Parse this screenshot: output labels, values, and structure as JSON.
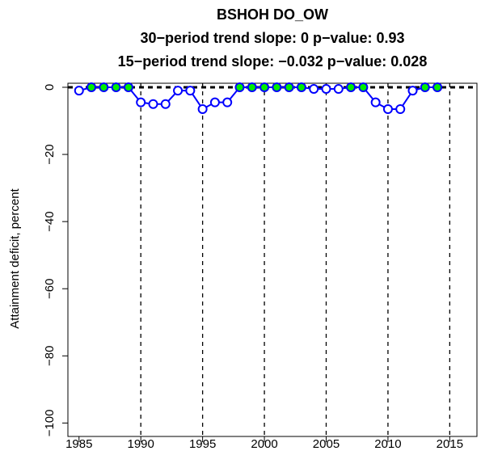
{
  "chart_data": {
    "type": "line",
    "title": "BSHOH   DO_OW",
    "subtitle": "30−period trend slope: 0   p−value: 0.93",
    "subtitle2": "15−period trend slope: −0.032   p−value: 0.028",
    "ylabel": "Attainment deficit, percent",
    "x": [
      1985,
      1986,
      1987,
      1988,
      1989,
      1990,
      1991,
      1992,
      1993,
      1994,
      1995,
      1996,
      1997,
      1998,
      1999,
      2000,
      2001,
      2002,
      2003,
      2004,
      2005,
      2006,
      2007,
      2008,
      2009,
      2010,
      2011,
      2012,
      2013,
      2014
    ],
    "series": [
      {
        "name": "Attainment deficit",
        "color": "#0000ff",
        "values": [
          -1,
          0,
          0,
          0,
          0,
          -4.5,
          -5,
          -5,
          -1,
          -1,
          -6.5,
          -4.5,
          -4.5,
          0,
          0,
          0,
          0,
          0,
          0,
          -0.5,
          -0.5,
          -0.5,
          0,
          0,
          -4.5,
          -6.5,
          -6.5,
          -1,
          0,
          0
        ]
      }
    ],
    "zero_fill": "#00ee00",
    "xlim": [
      1984.1,
      2017.2
    ],
    "ylim": [
      -104,
      1.2
    ],
    "xticks": [
      1985,
      1990,
      1995,
      2000,
      2005,
      2010,
      2015
    ],
    "yticks": [
      {
        "value": 0,
        "label": "0"
      },
      {
        "value": -20,
        "label": "−20"
      },
      {
        "value": -40,
        "label": "−40"
      },
      {
        "value": -60,
        "label": "−60"
      },
      {
        "value": -80,
        "label": "−80"
      },
      {
        "value": -100,
        "label": "−100"
      }
    ],
    "vlines": [
      1990,
      1995,
      2000,
      2005,
      2010,
      2015
    ],
    "hline": 0
  }
}
